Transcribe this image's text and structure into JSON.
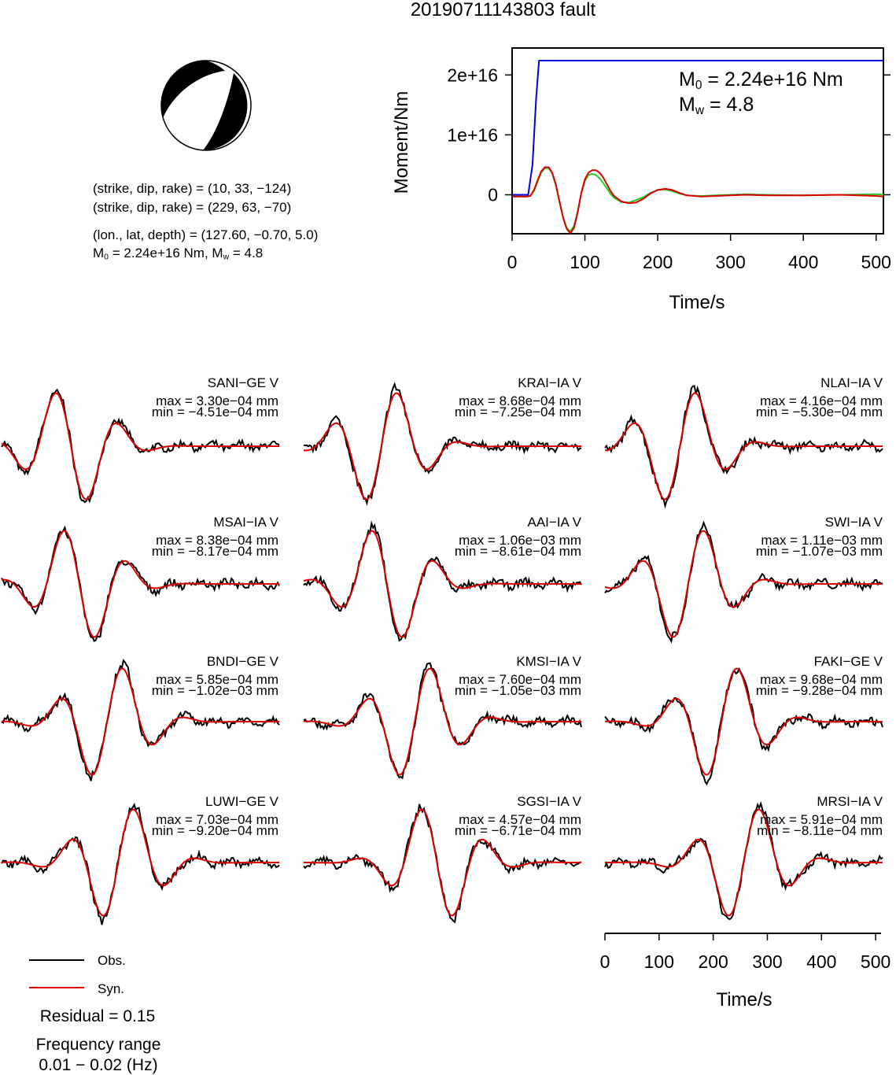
{
  "title": "20190711143803 fault",
  "mechanism": {
    "np1": "(strike, dip, rake) = (10, 33, −124)",
    "np2": "(strike, dip, rake) = (229, 63, −70)",
    "location": "(lon., lat, depth) = (127.60, −0.70, 5.0)",
    "m0_prefix": "M",
    "m0_sub": "0",
    "m0_rest": " = 2.24e+16 Nm, M",
    "mw_sub": "w",
    "mw_rest": " = 4.8",
    "strike": 10,
    "dip": 33,
    "rake": -124
  },
  "moment_annotation": {
    "m0_label": "M",
    "m0_sub": "0",
    "m0_value": " = 2.24e+16 Nm",
    "mw_label": "M",
    "mw_sub": "w",
    "mw_value": " = 4.8"
  },
  "legend": {
    "obs_label": "Obs.",
    "syn_label": "Syn.",
    "residual": "Residual = 0.15",
    "freq_title": "Frequency range",
    "freq_value": "0.01 − 0.02 (Hz)"
  },
  "colors": {
    "observed": "#000000",
    "synthetic": "#dd0000",
    "moment_cumulative": "#0000dd",
    "moment_rate_green": "#22cc22"
  },
  "stations": [
    {
      "name": "SANI−GE V",
      "max": "max = 3.30e−04 mm",
      "min": "min = −4.51e−04 mm"
    },
    {
      "name": "KRAI−IA V",
      "max": "max = 8.68e−04 mm",
      "min": "min = −7.25e−04 mm"
    },
    {
      "name": "NLAI−IA V",
      "max": "max = 4.16e−04 mm",
      "min": "min = −5.30e−04 mm"
    },
    {
      "name": "MSAI−IA V",
      "max": "max = 8.38e−04 mm",
      "min": "min = −8.17e−04 mm"
    },
    {
      "name": "AAI−IA V",
      "max": "max = 1.06e−03 mm",
      "min": "min = −8.61e−04 mm"
    },
    {
      "name": "SWI−IA V",
      "max": "max = 1.11e−03 mm",
      "min": "min = −1.07e−03 mm"
    },
    {
      "name": "BNDI−GE V",
      "max": "max = 5.85e−04 mm",
      "min": "min = −1.02e−03 mm"
    },
    {
      "name": "KMSI−IA V",
      "max": "max = 7.60e−04 mm",
      "min": "min = −1.05e−03 mm"
    },
    {
      "name": "FAKI−GE V",
      "max": "max = 9.68e−04 mm",
      "min": "min = −9.28e−04 mm"
    },
    {
      "name": "LUWI−GE V",
      "max": "max = 7.03e−04 mm",
      "min": "min = −9.20e−04 mm"
    },
    {
      "name": "SGSI−IA V",
      "max": "max = 4.57e−04 mm",
      "min": "min = −6.71e−04 mm"
    },
    {
      "name": "MRSI−IA V",
      "max": "max = 5.91e−04 mm",
      "min": "min = −8.11e−04 mm"
    }
  ],
  "chart_data": [
    {
      "type": "line",
      "ylabel": "Moment/Nm",
      "xlabel": "Time/s",
      "xlim": [
        0,
        510
      ],
      "ylim": [
        -6500000000000000.0,
        2.45e+16
      ],
      "x_ticks": [
        "0",
        "100",
        "200",
        "300",
        "400",
        "500"
      ],
      "y_ticks": [
        "0",
        "1e+16",
        "2e+16"
      ],
      "x_tick_values": [
        0,
        100,
        200,
        300,
        400,
        500
      ],
      "y_tick_values": [
        0,
        1e+16,
        2e+16
      ],
      "series": [
        {
          "color": "#0000dd",
          "x": [
            0,
            22,
            28,
            33,
            37,
            510
          ],
          "y": [
            0,
            0,
            5000000000000000.0,
            1.6e+16,
            2.24e+16,
            2.24e+16
          ]
        },
        {
          "color": "#22cc22",
          "x": [
            0,
            20,
            25,
            30,
            35,
            40,
            45,
            50,
            55,
            60,
            65,
            70,
            75,
            80,
            85,
            90,
            95,
            100,
            105,
            110,
            115,
            120,
            125,
            130,
            135,
            140,
            150,
            160,
            170,
            180,
            190,
            200,
            210,
            220,
            230,
            240,
            260,
            280,
            300,
            320,
            350,
            400,
            450,
            500,
            510
          ],
          "y": [
            -300000000000000.0,
            -300000000000000.0,
            -200000000000000.0,
            600000000000000.0,
            2200000000000000.0,
            3700000000000000.0,
            4400000000000000.0,
            4500000000000000.0,
            3600000000000000.0,
            1600000000000000.0,
            -1200000000000000.0,
            -3800000000000000.0,
            -5500000000000000.0,
            -6100000000000000.0,
            -5200000000000000.0,
            -2800000000000000.0,
            200000000000000.0,
            2300000000000000.0,
            3300000000000000.0,
            3500000000000000.0,
            3300000000000000.0,
            2800000000000000.0,
            2000000000000000.0,
            1100000000000000.0,
            200000000000000.0,
            -500000000000000.0,
            -1200000000000000.0,
            -1300000000000000.0,
            -900000000000000.0,
            -400000000000000.0,
            300000000000000.0,
            800000000000000.0,
            900000000000000.0,
            600000000000000.0,
            200000000000000.0,
            -100000000000000.0,
            -200000000000000.0,
            -100000000000000.0,
            0,
            100000000000000.0,
            0,
            -100000000000000.0,
            0,
            100000000000000.0,
            0
          ]
        },
        {
          "color": "#dd0000",
          "x": [
            0,
            20,
            25,
            30,
            35,
            40,
            45,
            50,
            55,
            60,
            65,
            70,
            75,
            80,
            85,
            90,
            95,
            100,
            105,
            110,
            115,
            120,
            125,
            130,
            135,
            140,
            150,
            160,
            170,
            180,
            190,
            200,
            210,
            220,
            230,
            240,
            260,
            280,
            300,
            320,
            350,
            400,
            450,
            500,
            510
          ],
          "y": [
            -300000000000000.0,
            -300000000000000.0,
            -200000000000000.0,
            800000000000000.0,
            2400000000000000.0,
            3900000000000000.0,
            4600000000000000.0,
            4600000000000000.0,
            3700000000000000.0,
            1800000000000000.0,
            -1100000000000000.0,
            -3800000000000000.0,
            -5700000000000000.0,
            -6400000000000000.0,
            -5500000000000000.0,
            -3000000000000000.0,
            300000000000000.0,
            2600000000000000.0,
            3700000000000000.0,
            4100000000000000.0,
            4100000000000000.0,
            3700000000000000.0,
            2900000000000000.0,
            1800000000000000.0,
            700000000000000.0,
            -200000000000000.0,
            -1100000000000000.0,
            -1400000000000000.0,
            -1300000000000000.0,
            -700000000000000.0,
            200000000000000.0,
            800000000000000.0,
            1000000000000000.0,
            800000000000000.0,
            300000000000000.0,
            -100000000000000.0,
            -300000000000000.0,
            -200000000000000.0,
            -100000000000000.0,
            0,
            -100000000000000.0,
            -100000000000000.0,
            0,
            -200000000000000.0,
            -300000000000000.0
          ]
        }
      ]
    },
    {
      "type": "line",
      "xlabel": "Time/s",
      "xlim": [
        0,
        510
      ],
      "x_ticks": [
        "0",
        "100",
        "200",
        "300",
        "400",
        "500"
      ],
      "x_tick_values": [
        0,
        100,
        200,
        300,
        400,
        500
      ]
    }
  ]
}
